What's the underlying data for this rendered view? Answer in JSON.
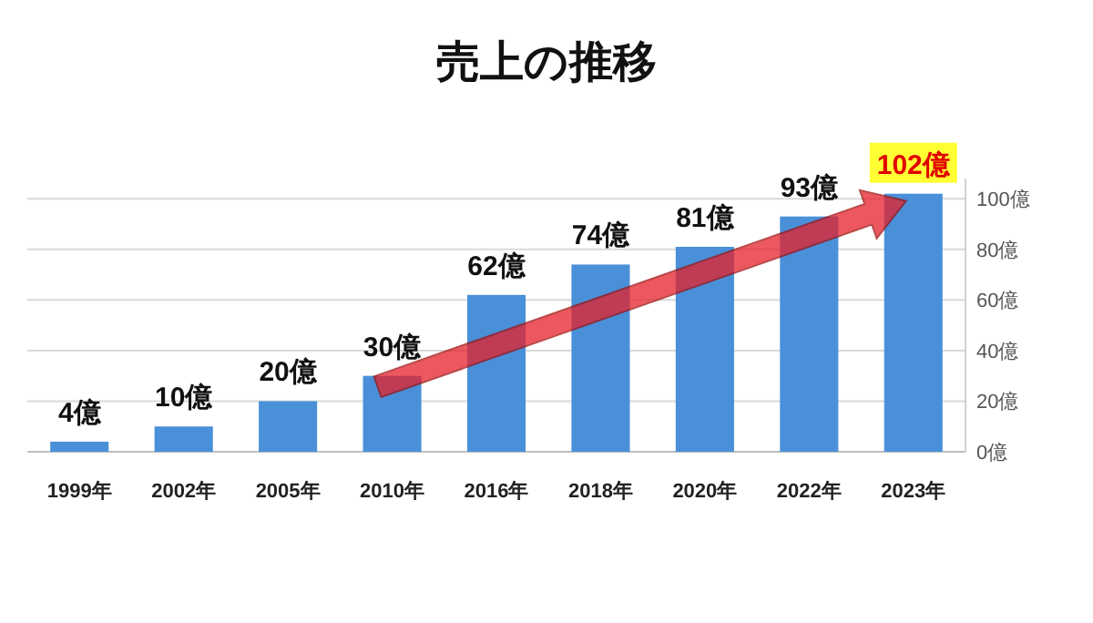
{
  "chart_data": {
    "type": "bar",
    "title": "売上の推移",
    "categories": [
      "1999年",
      "2002年",
      "2005年",
      "2010年",
      "2016年",
      "2018年",
      "2020年",
      "2022年",
      "2023年"
    ],
    "series": [
      {
        "color": "#4a90d9",
        "axis": "y2",
        "values": [
          4,
          10,
          20,
          30,
          62,
          74,
          81,
          93,
          102
        ],
        "value_labels": [
          "4億",
          "10億",
          "20億",
          "30億",
          "62億",
          "74億",
          "81億",
          "93億",
          "102億"
        ]
      }
    ],
    "y2lim": [
      0,
      108
    ],
    "y2ticks": [
      {
        "value": 0,
        "label": "0億"
      },
      {
        "value": 20,
        "label": "20億"
      },
      {
        "value": 40,
        "label": "40億"
      },
      {
        "value": 60,
        "label": "60億"
      },
      {
        "value": 80,
        "label": "80億"
      },
      {
        "value": 100,
        "label": "100億"
      }
    ],
    "grid": "y"
  }
}
